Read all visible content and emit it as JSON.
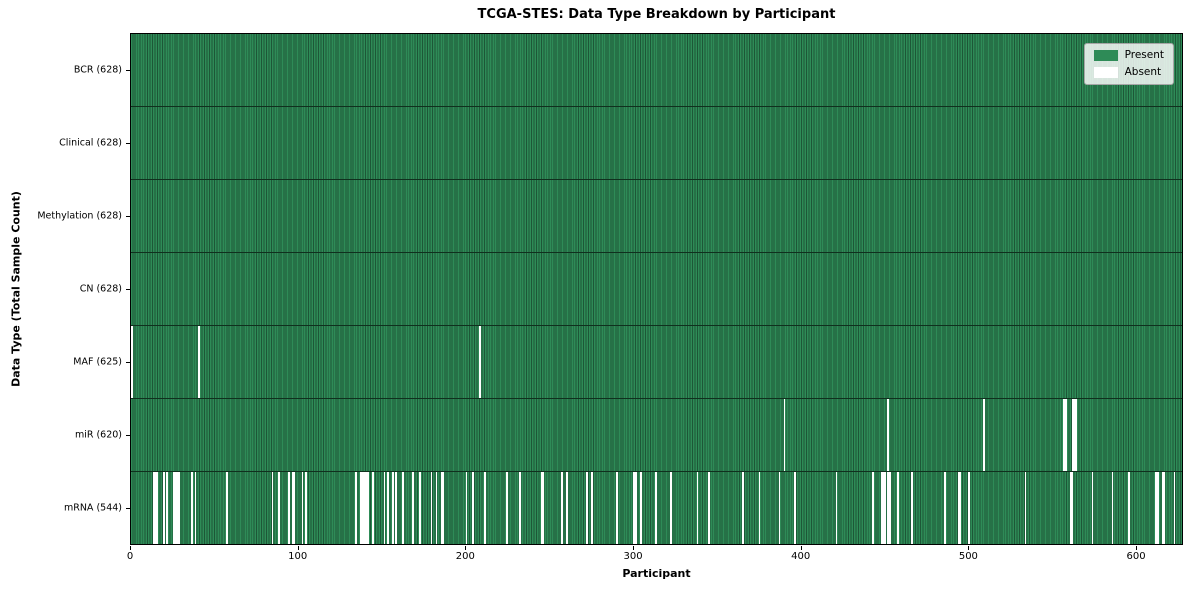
{
  "figure": {
    "title": "TCGA-STES: Data Type Breakdown by Participant",
    "xlabel": "Participant",
    "ylabel": "Data Type (Total Sample Count)"
  },
  "chart_data": {
    "type": "heatmap",
    "title": "TCGA-STES: Data Type Breakdown by Participant",
    "xlabel": "Participant",
    "ylabel": "Data Type (Total Sample Count)",
    "x_range": [
      0,
      628
    ],
    "x_ticks": [
      0,
      100,
      200,
      300,
      400,
      500,
      600
    ],
    "n_participants": 628,
    "grid": false,
    "legend": {
      "position": "upper right",
      "entries": [
        {
          "label": "Present",
          "color": "#2e8b57"
        },
        {
          "label": "Absent",
          "color": "#ffffff"
        }
      ]
    },
    "present_color": "#2e8b57",
    "absent_color": "#ffffff",
    "rows": [
      {
        "name": "BCR",
        "label": "BCR (628)",
        "present_count": 628,
        "absent_participants": []
      },
      {
        "name": "Clinical",
        "label": "Clinical (628)",
        "present_count": 628,
        "absent_participants": []
      },
      {
        "name": "Methylation",
        "label": "Methylation (628)",
        "present_count": 628,
        "absent_participants": []
      },
      {
        "name": "CN",
        "label": "CN (628)",
        "present_count": 628,
        "absent_participants": []
      },
      {
        "name": "MAF",
        "label": "MAF (625)",
        "present_count": 625,
        "absent_participants": [
          0,
          40,
          208
        ]
      },
      {
        "name": "miR",
        "label": "miR (620)",
        "present_count": 620,
        "absent_participants": [
          390,
          452,
          509,
          557,
          558,
          562,
          563,
          564
        ]
      },
      {
        "name": "mRNA",
        "label": "mRNA (544)",
        "present_count": 544,
        "absent_participants": [
          13,
          14,
          15,
          19,
          21,
          25,
          26,
          27,
          28,
          36,
          38,
          57,
          84,
          88,
          94,
          96,
          97,
          102,
          104,
          134,
          137,
          138,
          139,
          140,
          141,
          144,
          151,
          153,
          156,
          158,
          162,
          168,
          172,
          179,
          182,
          185,
          186,
          200,
          204,
          211,
          224,
          232,
          245,
          246,
          257,
          260,
          272,
          275,
          290,
          300,
          301,
          304,
          313,
          322,
          338,
          345,
          365,
          375,
          387,
          396,
          421,
          443,
          448,
          449,
          450,
          452,
          453,
          458,
          466,
          486,
          494,
          495,
          500,
          534,
          561,
          562,
          574,
          586,
          596,
          612,
          613,
          616,
          617,
          623
        ]
      }
    ]
  }
}
